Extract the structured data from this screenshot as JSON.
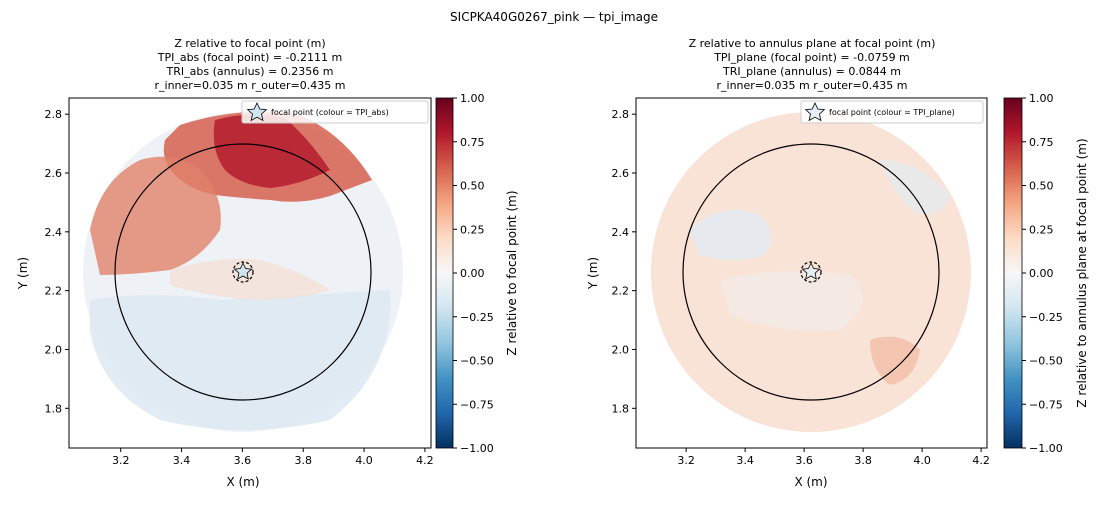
{
  "figure": {
    "suptitle": "SICPKA40G0267_pink — tpi_image"
  },
  "chart_data": [
    {
      "type": "scatter",
      "title": "Z relative to focal point (m)\nTPI_abs (focal point) = -0.2111 m\nTRI_abs (annulus) = 0.2356 m\nr_inner=0.035 m  r_outer=0.435 m",
      "xlabel": "X (m)",
      "ylabel": "Y (m)",
      "xlim": [
        3.03,
        4.22
      ],
      "ylim": [
        1.665,
        2.855
      ],
      "xticks": [
        3.2,
        3.4,
        3.6,
        3.8,
        4.0,
        4.2
      ],
      "yticks": [
        1.8,
        2.0,
        2.2,
        2.4,
        2.6,
        2.8
      ],
      "colorbar": {
        "label": "Z relative to focal point (m)",
        "range": [
          -1.0,
          1.0
        ],
        "ticks": [
          1.0,
          0.75,
          0.5,
          0.25,
          0.0,
          -0.25,
          -0.5,
          -0.75,
          -1.0
        ],
        "tick_labels": [
          "1.00",
          "0.75",
          "0.50",
          "0.25",
          "0.00",
          "−0.25",
          "−0.50",
          "−0.75",
          "−1.00"
        ],
        "colormap": "RdBu_r"
      },
      "legend": {
        "label": "focal point (colour = TPI_abs)",
        "position": "top-right"
      },
      "focal_point": {
        "x": 3.62,
        "y": 2.26,
        "value": -0.2111,
        "marker": "star"
      },
      "inner_circle": {
        "cx": 3.62,
        "cy": 2.26,
        "r": 0.035,
        "style": "dashed"
      },
      "outer_circle": {
        "cx": 3.62,
        "cy": 2.26,
        "r": 0.435,
        "style": "solid"
      },
      "data_extent": {
        "cx": 3.62,
        "cy": 2.26,
        "r": 0.545
      },
      "grid": false
    },
    {
      "type": "scatter",
      "title": "Z relative to annulus plane at focal point (m)\nTPI_plane (focal point) = -0.0759 m\nTRI_plane (annulus) = 0.0844 m\nr_inner=0.035 m  r_outer=0.435 m",
      "xlabel": "X (m)",
      "ylabel": "Y (m)",
      "xlim": [
        3.03,
        4.22
      ],
      "ylim": [
        1.665,
        2.855
      ],
      "xticks": [
        3.2,
        3.4,
        3.6,
        3.8,
        4.0,
        4.2
      ],
      "yticks": [
        1.8,
        2.0,
        2.2,
        2.4,
        2.6,
        2.8
      ],
      "colorbar": {
        "label": "Z relative to annulus plane at focal point (m)",
        "range": [
          -1.0,
          1.0
        ],
        "ticks": [
          1.0,
          0.75,
          0.5,
          0.25,
          0.0,
          -0.25,
          -0.5,
          -0.75,
          -1.0
        ],
        "tick_labels": [
          "1.00",
          "0.75",
          "0.50",
          "0.25",
          "0.00",
          "−0.25",
          "−0.50",
          "−0.75",
          "−1.00"
        ],
        "colormap": "RdBu_r"
      },
      "legend": {
        "label": "focal point (colour = TPI_plane)",
        "position": "top-right"
      },
      "focal_point": {
        "x": 3.62,
        "y": 2.26,
        "value": -0.0759,
        "marker": "star"
      },
      "inner_circle": {
        "cx": 3.62,
        "cy": 2.26,
        "r": 0.035,
        "style": "dashed"
      },
      "outer_circle": {
        "cx": 3.62,
        "cy": 2.26,
        "r": 0.435,
        "style": "solid"
      },
      "data_extent": {
        "cx": 3.62,
        "cy": 2.26,
        "r": 0.545
      },
      "grid": false
    }
  ]
}
